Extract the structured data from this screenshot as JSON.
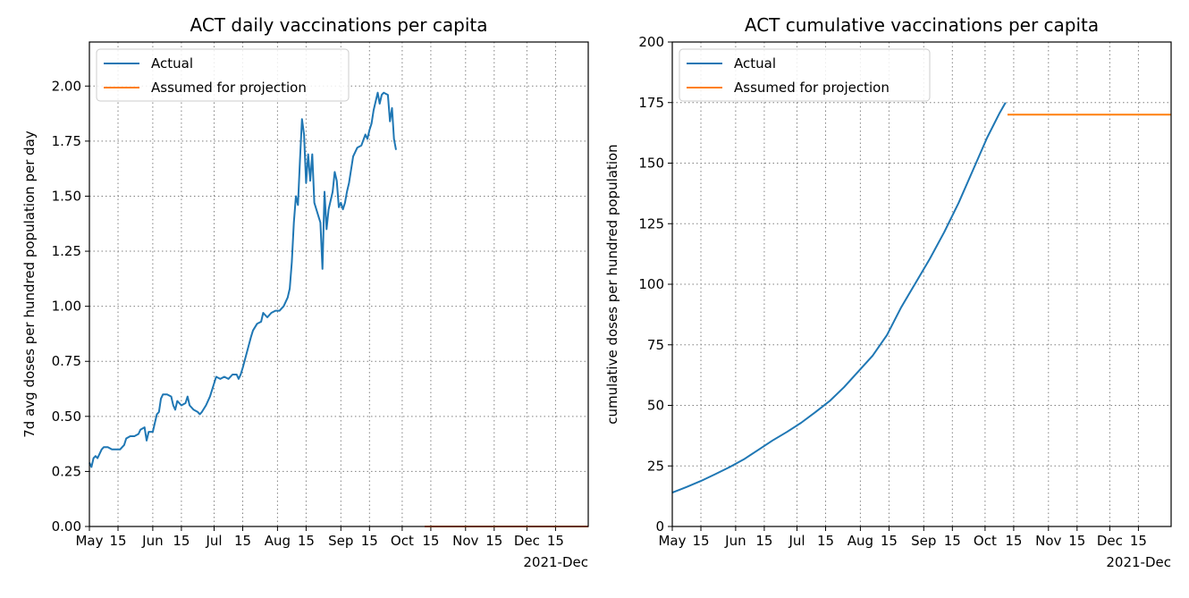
{
  "colors": {
    "actual": "#1f77b4",
    "projection": "#ff7f0e"
  },
  "chart_data": [
    {
      "type": "line",
      "title": "ACT daily vaccinations per capita",
      "xlabel": "",
      "ylabel": "7d avg doses per hundred population per day",
      "x_offset_label": "2021-Dec",
      "xlim": [
        "2021-05-01",
        "2021-12-31"
      ],
      "ylim": [
        0,
        2.2
      ],
      "y_ticks": [
        "0.00",
        "0.25",
        "0.50",
        "0.75",
        "1.00",
        "1.25",
        "1.50",
        "1.75",
        "2.00"
      ],
      "x_ticks": [
        {
          "date": "2021-05-01",
          "label": "May"
        },
        {
          "date": "2021-05-15",
          "label": "15"
        },
        {
          "date": "2021-06-01",
          "label": "Jun"
        },
        {
          "date": "2021-06-15",
          "label": "15"
        },
        {
          "date": "2021-07-01",
          "label": "Jul"
        },
        {
          "date": "2021-07-15",
          "label": "15"
        },
        {
          "date": "2021-08-01",
          "label": "Aug"
        },
        {
          "date": "2021-08-15",
          "label": "15"
        },
        {
          "date": "2021-09-01",
          "label": "Sep"
        },
        {
          "date": "2021-09-15",
          "label": "15"
        },
        {
          "date": "2021-10-01",
          "label": "Oct"
        },
        {
          "date": "2021-10-15",
          "label": "15"
        },
        {
          "date": "2021-11-01",
          "label": "Nov"
        },
        {
          "date": "2021-11-15",
          "label": "15"
        },
        {
          "date": "2021-12-01",
          "label": "Dec"
        },
        {
          "date": "2021-12-15",
          "label": "15"
        }
      ],
      "grid": true,
      "legend": "top-left",
      "series": [
        {
          "name": "Actual",
          "color": "#1f77b4",
          "points": [
            [
              "2021-05-01",
              0.29
            ],
            [
              "2021-05-02",
              0.27
            ],
            [
              "2021-05-03",
              0.31
            ],
            [
              "2021-05-04",
              0.32
            ],
            [
              "2021-05-05",
              0.31
            ],
            [
              "2021-05-06",
              0.33
            ],
            [
              "2021-05-07",
              0.35
            ],
            [
              "2021-05-08",
              0.36
            ],
            [
              "2021-05-10",
              0.36
            ],
            [
              "2021-05-12",
              0.35
            ],
            [
              "2021-05-14",
              0.35
            ],
            [
              "2021-05-16",
              0.35
            ],
            [
              "2021-05-18",
              0.37
            ],
            [
              "2021-05-19",
              0.4
            ],
            [
              "2021-05-21",
              0.41
            ],
            [
              "2021-05-23",
              0.41
            ],
            [
              "2021-05-25",
              0.42
            ],
            [
              "2021-05-26",
              0.44
            ],
            [
              "2021-05-28",
              0.45
            ],
            [
              "2021-05-29",
              0.39
            ],
            [
              "2021-05-30",
              0.43
            ],
            [
              "2021-06-01",
              0.43
            ],
            [
              "2021-06-02",
              0.47
            ],
            [
              "2021-06-03",
              0.51
            ],
            [
              "2021-06-04",
              0.52
            ],
            [
              "2021-06-05",
              0.58
            ],
            [
              "2021-06-06",
              0.6
            ],
            [
              "2021-06-08",
              0.6
            ],
            [
              "2021-06-10",
              0.59
            ],
            [
              "2021-06-11",
              0.55
            ],
            [
              "2021-06-12",
              0.53
            ],
            [
              "2021-06-13",
              0.57
            ],
            [
              "2021-06-15",
              0.55
            ],
            [
              "2021-06-17",
              0.56
            ],
            [
              "2021-06-18",
              0.59
            ],
            [
              "2021-06-19",
              0.55
            ],
            [
              "2021-06-21",
              0.53
            ],
            [
              "2021-06-23",
              0.52
            ],
            [
              "2021-06-24",
              0.51
            ],
            [
              "2021-06-25",
              0.52
            ],
            [
              "2021-06-27",
              0.55
            ],
            [
              "2021-06-29",
              0.59
            ],
            [
              "2021-07-01",
              0.65
            ],
            [
              "2021-07-02",
              0.68
            ],
            [
              "2021-07-04",
              0.67
            ],
            [
              "2021-07-06",
              0.68
            ],
            [
              "2021-07-08",
              0.67
            ],
            [
              "2021-07-10",
              0.69
            ],
            [
              "2021-07-12",
              0.69
            ],
            [
              "2021-07-13",
              0.67
            ],
            [
              "2021-07-14",
              0.69
            ],
            [
              "2021-07-15",
              0.72
            ],
            [
              "2021-07-17",
              0.79
            ],
            [
              "2021-07-19",
              0.86
            ],
            [
              "2021-07-20",
              0.89
            ],
            [
              "2021-07-22",
              0.92
            ],
            [
              "2021-07-24",
              0.93
            ],
            [
              "2021-07-25",
              0.97
            ],
            [
              "2021-07-27",
              0.95
            ],
            [
              "2021-07-29",
              0.97
            ],
            [
              "2021-07-31",
              0.98
            ],
            [
              "2021-08-02",
              0.98
            ],
            [
              "2021-08-04",
              1.0
            ],
            [
              "2021-08-06",
              1.04
            ],
            [
              "2021-08-07",
              1.08
            ],
            [
              "2021-08-08",
              1.2
            ],
            [
              "2021-08-09",
              1.38
            ],
            [
              "2021-08-10",
              1.5
            ],
            [
              "2021-08-11",
              1.46
            ],
            [
              "2021-08-12",
              1.66
            ],
            [
              "2021-08-13",
              1.85
            ],
            [
              "2021-08-14",
              1.78
            ],
            [
              "2021-08-15",
              1.56
            ],
            [
              "2021-08-16",
              1.69
            ],
            [
              "2021-08-17",
              1.57
            ],
            [
              "2021-08-18",
              1.69
            ],
            [
              "2021-08-19",
              1.47
            ],
            [
              "2021-08-21",
              1.41
            ],
            [
              "2021-08-22",
              1.38
            ],
            [
              "2021-08-23",
              1.17
            ],
            [
              "2021-08-24",
              1.52
            ],
            [
              "2021-08-25",
              1.35
            ],
            [
              "2021-08-26",
              1.44
            ],
            [
              "2021-08-28",
              1.52
            ],
            [
              "2021-08-29",
              1.61
            ],
            [
              "2021-08-30",
              1.57
            ],
            [
              "2021-08-31",
              1.45
            ],
            [
              "2021-09-01",
              1.47
            ],
            [
              "2021-09-02",
              1.44
            ],
            [
              "2021-09-03",
              1.47
            ],
            [
              "2021-09-04",
              1.52
            ],
            [
              "2021-09-05",
              1.56
            ],
            [
              "2021-09-07",
              1.68
            ],
            [
              "2021-09-09",
              1.72
            ],
            [
              "2021-09-11",
              1.73
            ],
            [
              "2021-09-13",
              1.78
            ],
            [
              "2021-09-14",
              1.76
            ],
            [
              "2021-09-15",
              1.8
            ],
            [
              "2021-09-16",
              1.83
            ],
            [
              "2021-09-17",
              1.89
            ],
            [
              "2021-09-18",
              1.93
            ],
            [
              "2021-09-19",
              1.97
            ],
            [
              "2021-09-20",
              1.92
            ],
            [
              "2021-09-21",
              1.96
            ],
            [
              "2021-09-22",
              1.97
            ],
            [
              "2021-09-24",
              1.96
            ],
            [
              "2021-09-25",
              1.84
            ],
            [
              "2021-09-26",
              1.9
            ],
            [
              "2021-09-27",
              1.76
            ],
            [
              "2021-09-28",
              1.71
            ]
          ]
        },
        {
          "name": "Assumed for projection",
          "color": "#ff7f0e",
          "points": [
            [
              "2021-10-12",
              0.0
            ],
            [
              "2021-12-31",
              0.0
            ]
          ]
        }
      ]
    },
    {
      "type": "line",
      "title": "ACT cumulative vaccinations per capita",
      "xlabel": "",
      "ylabel": "cumulative doses per hundred population",
      "x_offset_label": "2021-Dec",
      "xlim": [
        "2021-05-01",
        "2021-12-31"
      ],
      "ylim": [
        0,
        200
      ],
      "y_ticks": [
        "0",
        "25",
        "50",
        "75",
        "100",
        "125",
        "150",
        "175",
        "200"
      ],
      "x_ticks": [
        {
          "date": "2021-05-01",
          "label": "May"
        },
        {
          "date": "2021-05-15",
          "label": "15"
        },
        {
          "date": "2021-06-01",
          "label": "Jun"
        },
        {
          "date": "2021-06-15",
          "label": "15"
        },
        {
          "date": "2021-07-01",
          "label": "Jul"
        },
        {
          "date": "2021-07-15",
          "label": "15"
        },
        {
          "date": "2021-08-01",
          "label": "Aug"
        },
        {
          "date": "2021-08-15",
          "label": "15"
        },
        {
          "date": "2021-09-01",
          "label": "Sep"
        },
        {
          "date": "2021-09-15",
          "label": "15"
        },
        {
          "date": "2021-10-01",
          "label": "Oct"
        },
        {
          "date": "2021-10-15",
          "label": "15"
        },
        {
          "date": "2021-11-01",
          "label": "Nov"
        },
        {
          "date": "2021-11-15",
          "label": "15"
        },
        {
          "date": "2021-12-01",
          "label": "Dec"
        },
        {
          "date": "2021-12-15",
          "label": "15"
        }
      ],
      "grid": true,
      "legend": "top-left",
      "series": [
        {
          "name": "Actual",
          "color": "#1f77b4",
          "points": [
            [
              "2021-05-01",
              14.0
            ],
            [
              "2021-05-08",
              16.3
            ],
            [
              "2021-05-15",
              18.8
            ],
            [
              "2021-05-22",
              21.6
            ],
            [
              "2021-05-29",
              24.5
            ],
            [
              "2021-06-05",
              27.7
            ],
            [
              "2021-06-12",
              31.6
            ],
            [
              "2021-06-19",
              35.5
            ],
            [
              "2021-06-26",
              39.0
            ],
            [
              "2021-07-03",
              42.8
            ],
            [
              "2021-07-10",
              47.2
            ],
            [
              "2021-07-17",
              51.8
            ],
            [
              "2021-07-24",
              57.5
            ],
            [
              "2021-07-31",
              64.0
            ],
            [
              "2021-08-07",
              70.5
            ],
            [
              "2021-08-14",
              79.0
            ],
            [
              "2021-08-21",
              90.5
            ],
            [
              "2021-08-28",
              100.5
            ],
            [
              "2021-09-04",
              110.5
            ],
            [
              "2021-09-11",
              121.5
            ],
            [
              "2021-09-18",
              133.5
            ],
            [
              "2021-09-25",
              147.0
            ],
            [
              "2021-10-02",
              160.5
            ],
            [
              "2021-10-08",
              170.5
            ],
            [
              "2021-10-11",
              175.0
            ]
          ]
        },
        {
          "name": "Assumed for projection",
          "color": "#ff7f0e",
          "points": [
            [
              "2021-10-12",
              170.0
            ],
            [
              "2021-12-31",
              170.0
            ]
          ]
        }
      ]
    }
  ]
}
